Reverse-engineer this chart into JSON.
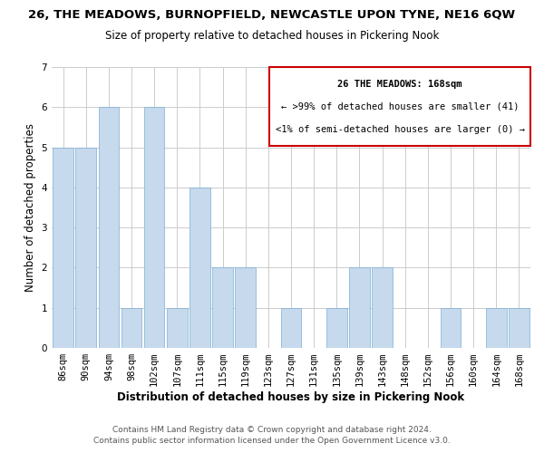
{
  "title": "26, THE MEADOWS, BURNOPFIELD, NEWCASTLE UPON TYNE, NE16 6QW",
  "subtitle": "Size of property relative to detached houses in Pickering Nook",
  "xlabel": "Distribution of detached houses by size in Pickering Nook",
  "ylabel": "Number of detached properties",
  "categories": [
    "86sqm",
    "90sqm",
    "94sqm",
    "98sqm",
    "102sqm",
    "107sqm",
    "111sqm",
    "115sqm",
    "119sqm",
    "123sqm",
    "127sqm",
    "131sqm",
    "135sqm",
    "139sqm",
    "143sqm",
    "148sqm",
    "152sqm",
    "156sqm",
    "160sqm",
    "164sqm",
    "168sqm"
  ],
  "values": [
    5,
    5,
    6,
    1,
    6,
    1,
    4,
    2,
    2,
    0,
    1,
    0,
    1,
    2,
    2,
    0,
    0,
    1,
    0,
    1,
    1
  ],
  "bar_color": "#c6d9ed",
  "bar_edge_color": "#7aafd4",
  "ylim": [
    0,
    7
  ],
  "yticks": [
    0,
    1,
    2,
    3,
    4,
    5,
    6,
    7
  ],
  "annotation_box_text_line1": "26 THE MEADOWS: 168sqm",
  "annotation_box_text_line2": "← >99% of detached houses are smaller (41)",
  "annotation_box_text_line3": "<1% of semi-detached houses are larger (0) →",
  "annotation_box_edge_color": "#cc0000",
  "footer_line1": "Contains HM Land Registry data © Crown copyright and database right 2024.",
  "footer_line2": "Contains public sector information licensed under the Open Government Licence v3.0.",
  "background_color": "#ffffff",
  "grid_color": "#cccccc",
  "title_fontsize": 9.5,
  "subtitle_fontsize": 8.5,
  "axis_label_fontsize": 8.5,
  "tick_fontsize": 7.5,
  "annotation_fontsize": 7.5,
  "footer_fontsize": 6.5
}
